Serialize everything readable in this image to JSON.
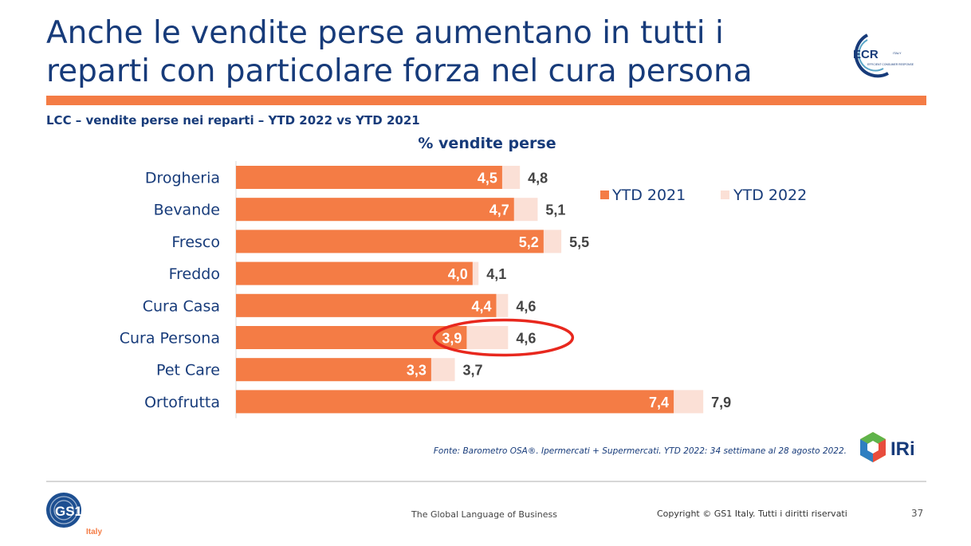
{
  "slide": {
    "title": "Anche le vendite perse aumentano in tutti i reparti con particolare forza nel cura persona",
    "subtitle": "LCC – vendite perse nei reparti – YTD 2022 vs YTD 2021",
    "source": "Fonte: Barometro OSA®.  Ipermercati + Supermercati. YTD 2022: 34 settimane al 28 agosto 2022.",
    "ecr_logo_text": "ECR",
    "ecr_logo_subtext": "EFFICIENT CONSUMER RESPONSE",
    "ecr_logo_country": "ITALY",
    "iri_logo_text": "IRi",
    "gs1_logo_text": "GS1",
    "gs1_logo_country": "Italy",
    "footer_tagline": "The Global Language of Business",
    "copyright": "Copyright © GS1 Italy. Tutti i diritti riservati",
    "page_number": "37"
  },
  "colors": {
    "title": "#173b7a",
    "accent": "#f47c45",
    "ytd2021": "#f47c45",
    "ytd2022": "#fbe0d6",
    "highlight": "#e8281e",
    "value_label_outer": "#444444"
  },
  "chart_data": {
    "type": "bar",
    "orientation": "horizontal",
    "title": "% vendite perse",
    "categories": [
      "Drogheria",
      "Bevande",
      "Fresco",
      "Freddo",
      "Cura Casa",
      "Cura Persona",
      "Pet Care",
      "Ortofrutta"
    ],
    "series": [
      {
        "name": "YTD 2021",
        "values": [
          "4,5",
          "4,7",
          "5,2",
          "4,0",
          "4,4",
          "3,9",
          "3,3",
          "7,4"
        ]
      },
      {
        "name": "YTD 2022",
        "values": [
          "4,8",
          "5,1",
          "5,5",
          "4,1",
          "4,6",
          "4,6",
          "3,7",
          "7,9"
        ]
      }
    ],
    "legend_position": "top-right",
    "highlighted_category": "Cura Persona",
    "grid": false
  }
}
